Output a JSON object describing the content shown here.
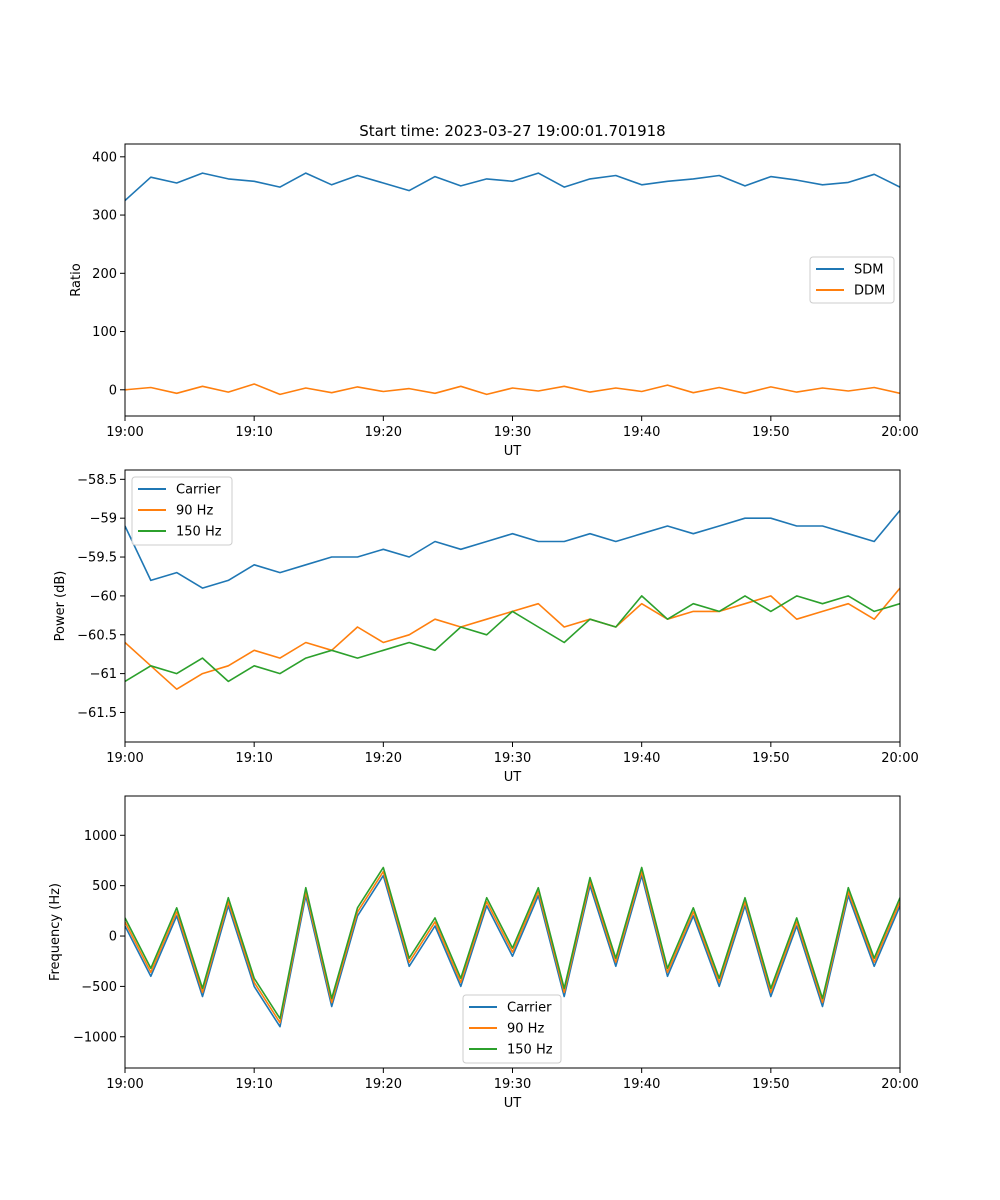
{
  "chart_data": [
    {
      "type": "line",
      "title": "Start time: 2023-03-27 19:00:01.701918",
      "xlabel": "UT",
      "ylabel": "Ratio",
      "xlim": [
        "19:00",
        "20:00"
      ],
      "ylim": [
        -45,
        422
      ],
      "xticks": [
        "19:00",
        "19:10",
        "19:20",
        "19:30",
        "19:40",
        "19:50",
        "20:00"
      ],
      "yticks": [
        0,
        100,
        200,
        300,
        400
      ],
      "legend": "center-right",
      "x": [
        "19:00",
        "19:02",
        "19:04",
        "19:06",
        "19:08",
        "19:10",
        "19:12",
        "19:14",
        "19:16",
        "19:18",
        "19:20",
        "19:22",
        "19:24",
        "19:26",
        "19:28",
        "19:30",
        "19:32",
        "19:34",
        "19:36",
        "19:38",
        "19:40",
        "19:42",
        "19:44",
        "19:46",
        "19:48",
        "19:50",
        "19:52",
        "19:54",
        "19:56",
        "19:58",
        "20:00"
      ],
      "series": [
        {
          "name": "SDM",
          "color": "#1f77b4",
          "values": [
            325,
            365,
            355,
            372,
            362,
            358,
            348,
            372,
            352,
            368,
            355,
            342,
            366,
            350,
            362,
            358,
            372,
            348,
            362,
            368,
            352,
            358,
            362,
            368,
            350,
            366,
            360,
            352,
            356,
            370,
            348
          ]
        },
        {
          "name": "DDM",
          "color": "#ff7f0e",
          "values": [
            0,
            4,
            -6,
            6,
            -4,
            10,
            -8,
            3,
            -5,
            5,
            -3,
            2,
            -6,
            6,
            -8,
            3,
            -2,
            6,
            -4,
            3,
            -3,
            8,
            -5,
            4,
            -6,
            5,
            -4,
            3,
            -2,
            4,
            -6
          ]
        }
      ]
    },
    {
      "type": "line",
      "xlabel": "UT",
      "ylabel": "Power (dB)",
      "xlim": [
        "19:00",
        "20:00"
      ],
      "ylim": [
        -61.88,
        -58.38
      ],
      "xticks": [
        "19:00",
        "19:10",
        "19:20",
        "19:30",
        "19:40",
        "19:50",
        "20:00"
      ],
      "yticks": [
        -61.5,
        -61.0,
        -60.5,
        -60.0,
        -59.5,
        -59.0,
        -58.5
      ],
      "legend": "top-left",
      "x": [
        "19:00",
        "19:02",
        "19:04",
        "19:06",
        "19:08",
        "19:10",
        "19:12",
        "19:14",
        "19:16",
        "19:18",
        "19:20",
        "19:22",
        "19:24",
        "19:26",
        "19:28",
        "19:30",
        "19:32",
        "19:34",
        "19:36",
        "19:38",
        "19:40",
        "19:42",
        "19:44",
        "19:46",
        "19:48",
        "19:50",
        "19:52",
        "19:54",
        "19:56",
        "19:58",
        "20:00"
      ],
      "series": [
        {
          "name": "Carrier",
          "color": "#1f77b4",
          "values": [
            -59.1,
            -59.8,
            -59.7,
            -59.9,
            -59.8,
            -59.6,
            -59.7,
            -59.6,
            -59.5,
            -59.5,
            -59.4,
            -59.5,
            -59.3,
            -59.4,
            -59.3,
            -59.2,
            -59.3,
            -59.3,
            -59.2,
            -59.3,
            -59.2,
            -59.1,
            -59.2,
            -59.1,
            -59.0,
            -59.0,
            -59.1,
            -59.1,
            -59.2,
            -59.3,
            -58.9
          ]
        },
        {
          "name": "90 Hz",
          "color": "#ff7f0e",
          "values": [
            -60.6,
            -60.9,
            -61.2,
            -61.0,
            -60.9,
            -60.7,
            -60.8,
            -60.6,
            -60.7,
            -60.4,
            -60.6,
            -60.5,
            -60.3,
            -60.4,
            -60.3,
            -60.2,
            -60.1,
            -60.4,
            -60.3,
            -60.4,
            -60.1,
            -60.3,
            -60.2,
            -60.2,
            -60.1,
            -60.0,
            -60.3,
            -60.2,
            -60.1,
            -60.3,
            -59.9
          ]
        },
        {
          "name": "150 Hz",
          "color": "#2ca02c",
          "values": [
            -61.1,
            -60.9,
            -61.0,
            -60.8,
            -61.1,
            -60.9,
            -61.0,
            -60.8,
            -60.7,
            -60.8,
            -60.7,
            -60.6,
            -60.7,
            -60.4,
            -60.5,
            -60.2,
            -60.4,
            -60.6,
            -60.3,
            -60.4,
            -60.0,
            -60.3,
            -60.1,
            -60.2,
            -60.0,
            -60.2,
            -60.0,
            -60.1,
            -60.0,
            -60.2,
            -60.1
          ]
        }
      ]
    },
    {
      "type": "line",
      "xlabel": "UT",
      "ylabel": "Frequency (Hz)",
      "xlim": [
        "19:00",
        "20:00"
      ],
      "ylim": [
        -1310,
        1390
      ],
      "xticks": [
        "19:00",
        "19:10",
        "19:20",
        "19:30",
        "19:40",
        "19:50",
        "20:00"
      ],
      "yticks": [
        -1000,
        -500,
        0,
        500,
        1000
      ],
      "legend": "bottom-center",
      "x": [
        "19:00",
        "19:02",
        "19:04",
        "19:06",
        "19:08",
        "19:10",
        "19:12",
        "19:14",
        "19:16",
        "19:18",
        "19:20",
        "19:22",
        "19:24",
        "19:26",
        "19:28",
        "19:30",
        "19:32",
        "19:34",
        "19:36",
        "19:38",
        "19:40",
        "19:42",
        "19:44",
        "19:46",
        "19:48",
        "19:50",
        "19:52",
        "19:54",
        "19:56",
        "19:58",
        "20:00"
      ],
      "series": [
        {
          "name": "Carrier",
          "color": "#1f77b4",
          "values": [
            100,
            -400,
            200,
            -600,
            300,
            -500,
            -900,
            400,
            -700,
            200,
            600,
            -300,
            100,
            -500,
            300,
            -200,
            400,
            -600,
            500,
            -300,
            600,
            -400,
            200,
            -500,
            300,
            -600,
            100,
            -700,
            400,
            -300,
            300
          ]
        },
        {
          "name": "90 Hz",
          "color": "#ff7f0e",
          "values": [
            140,
            -360,
            240,
            -560,
            340,
            -460,
            -860,
            440,
            -660,
            240,
            640,
            -260,
            140,
            -460,
            340,
            -160,
            440,
            -560,
            540,
            -260,
            640,
            -360,
            240,
            -460,
            340,
            -560,
            140,
            -660,
            440,
            -260,
            340
          ]
        },
        {
          "name": "150 Hz",
          "color": "#2ca02c",
          "values": [
            180,
            -320,
            280,
            -520,
            380,
            -420,
            -820,
            480,
            -620,
            280,
            680,
            -220,
            180,
            -420,
            380,
            -120,
            480,
            -520,
            580,
            -220,
            680,
            -320,
            280,
            -420,
            380,
            -520,
            180,
            -620,
            480,
            -220,
            380
          ]
        }
      ]
    }
  ]
}
